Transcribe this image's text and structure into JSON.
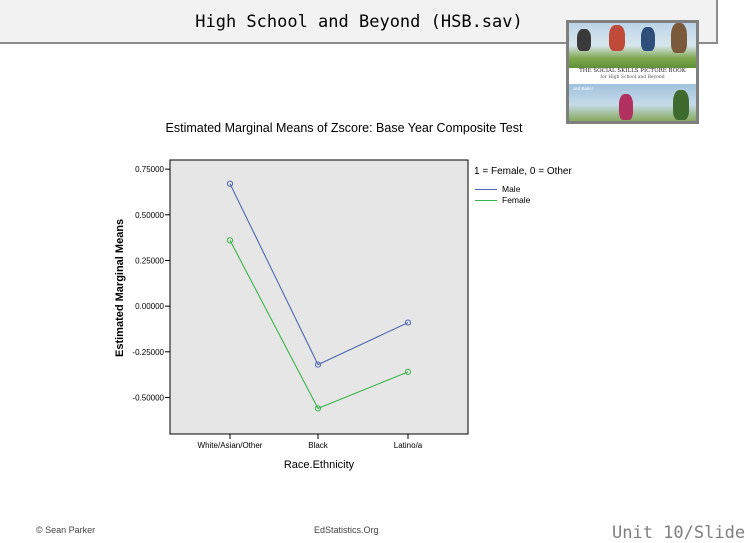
{
  "header": {
    "title": "High School and Beyond (HSB.sav)"
  },
  "book_cover": {
    "title": "THE SOCIAL SKILLS PICTURE BOOK",
    "subtitle": "for High School and Beyond",
    "author": "Jed Baker"
  },
  "chart_data": {
    "type": "line",
    "title": "Estimated Marginal Means of Zscore:  Base Year Composite Test",
    "xlabel": "Race.Ethnicity",
    "ylabel": "Estimated Marginal Means",
    "categories": [
      "White/Asian/Other",
      "Black",
      "Latino/a"
    ],
    "ylim": [
      -0.7,
      0.8
    ],
    "yticks": [
      0.75,
      0.5,
      0.25,
      0.0,
      -0.25,
      -0.5
    ],
    "ytick_labels": [
      "0.75000",
      "0.50000",
      "0.25000",
      "0.00000",
      "-0.25000",
      "-0.50000"
    ],
    "legend_title": "1 = Female, 0 = Other",
    "legend_position": "right",
    "grid": false,
    "plot_background": "#e6e6e6",
    "series": [
      {
        "name": "Male",
        "color": "#5068b0",
        "values": [
          0.67,
          -0.32,
          -0.09
        ]
      },
      {
        "name": "Female",
        "color": "#3cb44b",
        "values": [
          0.36,
          -0.56,
          -0.36
        ]
      }
    ]
  },
  "footer": {
    "left": "© Sean Parker",
    "center": "EdStatistics.Org",
    "right": "Unit 10/Slide"
  }
}
